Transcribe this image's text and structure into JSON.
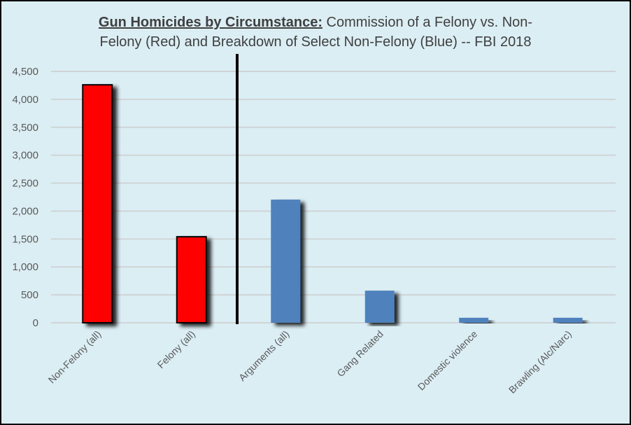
{
  "chart_data": {
    "type": "bar",
    "title_bold": "Gun Homicides by Circumstance:",
    "title_rest": " Commission of a Felony vs. Non-Felony (Red) and Breakdown of Select Non-Felony (Blue) -- FBI 2018",
    "title_line1": "Commission of a Felony vs. Non-",
    "title_line2": "Felony (Red) and Breakdown of Select Non-Felony (Blue) -- FBI 2018",
    "categories": [
      "Non-Felony (all)",
      "Felony (all)",
      "Arguments (all)",
      "Gang Related",
      "Domestic violence",
      "Brawling (Alc/Narc)"
    ],
    "values": [
      4260,
      1540,
      2205,
      575,
      90,
      90
    ],
    "colors": [
      "#ff0000",
      "#ff0000",
      "#4f81bd",
      "#4f81bd",
      "#4f81bd",
      "#4f81bd"
    ],
    "ylim": [
      0,
      4500
    ],
    "yticks": [
      0,
      500,
      1000,
      1500,
      2000,
      2500,
      3000,
      3500,
      4000,
      4500
    ],
    "ytick_labels": [
      "0",
      "500",
      "1,000",
      "1,500",
      "2,000",
      "2,500",
      "3,000",
      "3,500",
      "4,000",
      "4,500"
    ],
    "grid": true,
    "divider_after_category": 2,
    "background": "#dbeef4"
  }
}
